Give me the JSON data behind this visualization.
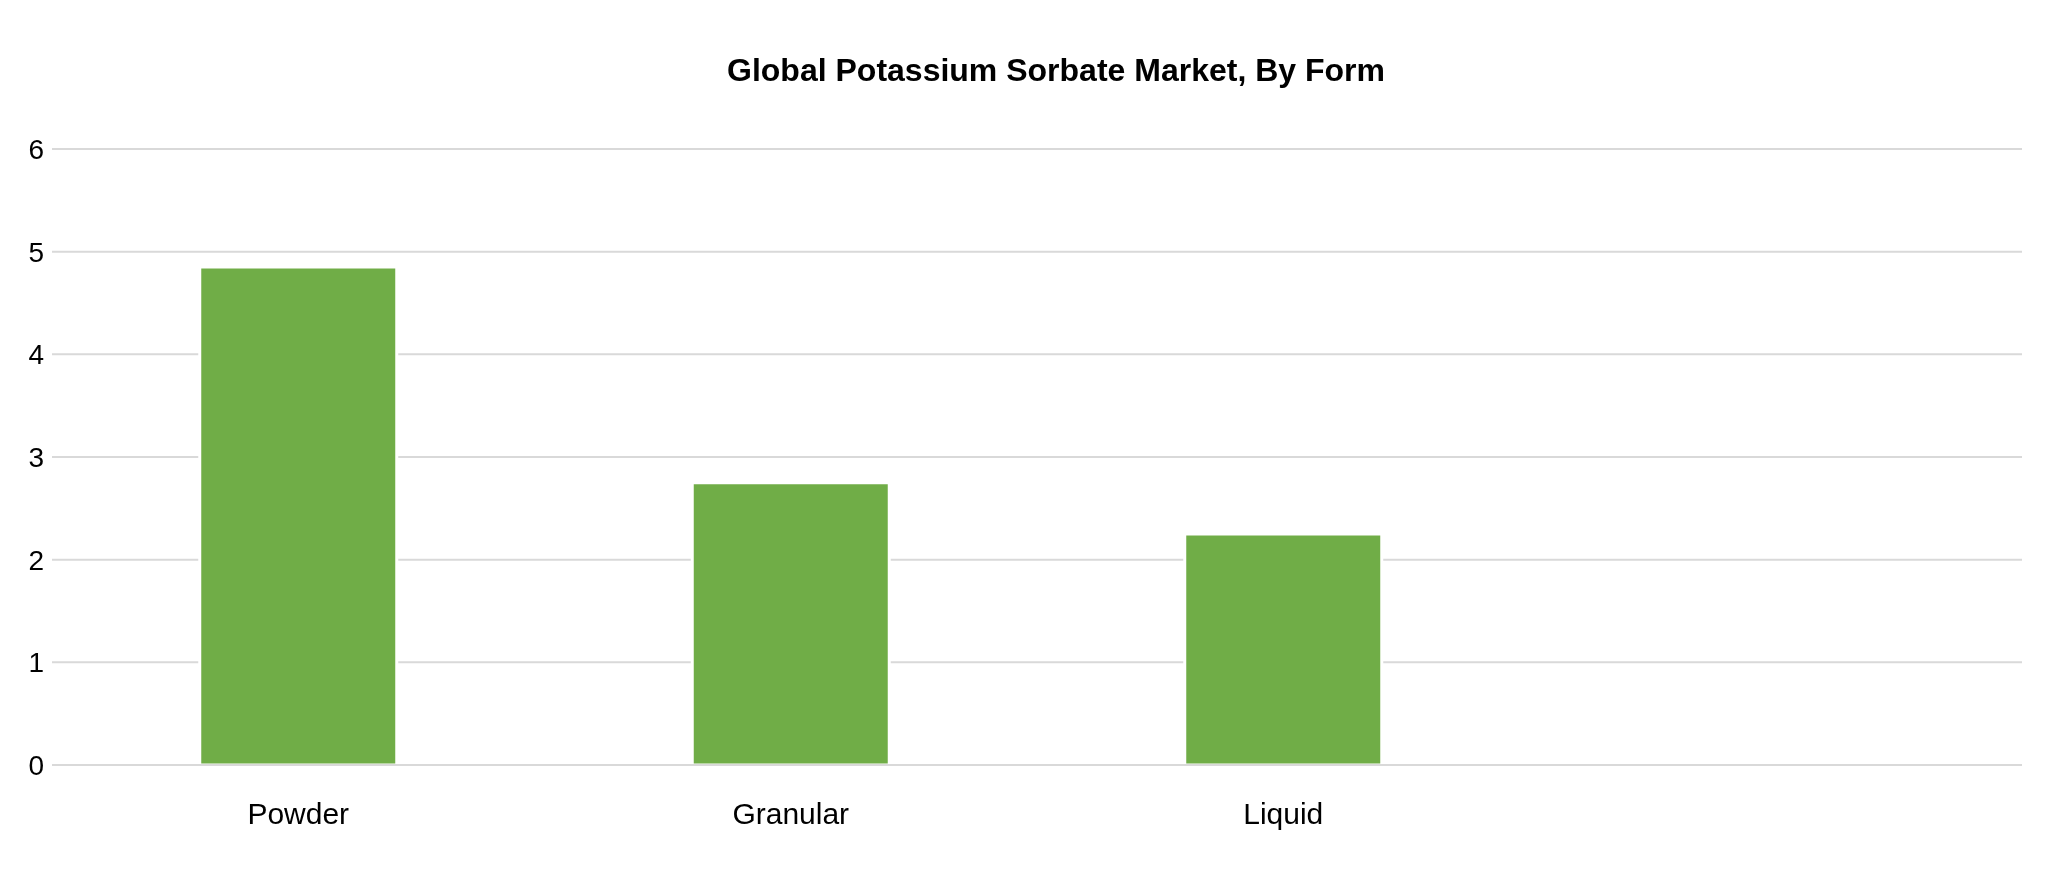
{
  "chart_data": {
    "type": "bar",
    "title": "Global Potassium Sorbate Market, By Form",
    "categories": [
      "Powder",
      "Granular",
      "Liquid",
      null
    ],
    "values": [
      4.85,
      2.75,
      2.25,
      null
    ],
    "color": "#70ad47",
    "ylim": [
      0,
      6
    ],
    "yticks": [
      0,
      1,
      2,
      3,
      4,
      5,
      6
    ],
    "grid": "y"
  }
}
